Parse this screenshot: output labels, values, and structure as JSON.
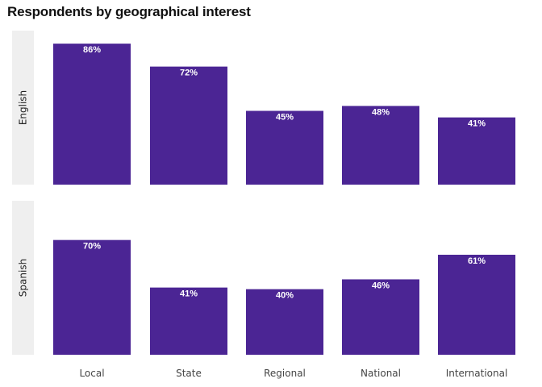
{
  "chart_data": {
    "type": "bar",
    "title": "Respondents by geographical interest",
    "categories": [
      "Local",
      "State",
      "Regional",
      "National",
      "International"
    ],
    "series": [
      {
        "name": "English",
        "values": [
          86,
          72,
          45,
          48,
          41
        ],
        "labels": [
          "86%",
          "72%",
          "45%",
          "48%",
          "41%"
        ]
      },
      {
        "name": "Spanish",
        "values": [
          70,
          41,
          40,
          46,
          61
        ],
        "labels": [
          "70%",
          "41%",
          "40%",
          "46%",
          "61%"
        ]
      }
    ],
    "ylim": [
      0,
      90
    ],
    "bar_color": "#4b2594",
    "strip_color": "#efefef"
  }
}
